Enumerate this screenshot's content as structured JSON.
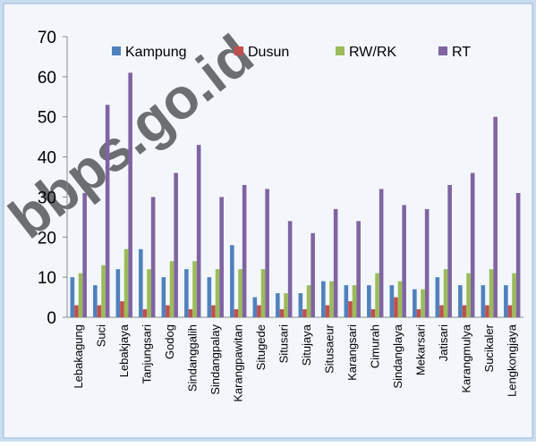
{
  "chart_data": {
    "type": "bar",
    "watermark": "bbps.go.id",
    "categories": [
      "Lebakagung",
      "Suci",
      "Lebakjaya",
      "Tanjungsari",
      "Godog",
      "Sindanggalih",
      "Sindangpalay",
      "Karangpawitan",
      "Situgede",
      "Situsari",
      "Situjaya",
      "Situsaeur",
      "Karangsari",
      "Cimurah",
      "Sindanglaya",
      "Mekarsari",
      "Jatisari",
      "Karangmulya",
      "Sucikaler",
      "Lengkongjaya"
    ],
    "series": [
      {
        "name": "Kampung",
        "color": "#4f81bd",
        "values": [
          10,
          8,
          12,
          17,
          10,
          12,
          10,
          18,
          5,
          6,
          6,
          9,
          8,
          8,
          8,
          7,
          10,
          8,
          8,
          8
        ]
      },
      {
        "name": "Dusun",
        "color": "#c0504d",
        "values": [
          3,
          3,
          4,
          2,
          3,
          2,
          3,
          2,
          3,
          2,
          2,
          3,
          4,
          2,
          5,
          2,
          3,
          3,
          3,
          3
        ]
      },
      {
        "name": "RW/RK",
        "color": "#9bbb59",
        "values": [
          11,
          13,
          17,
          12,
          14,
          14,
          12,
          12,
          12,
          6,
          8,
          9,
          8,
          11,
          9,
          7,
          12,
          11,
          12,
          11
        ]
      },
      {
        "name": "RT",
        "color": "#8064a2",
        "values": [
          31,
          53,
          61,
          30,
          36,
          43,
          30,
          33,
          32,
          24,
          21,
          27,
          24,
          32,
          28,
          27,
          33,
          36,
          50,
          31
        ]
      }
    ],
    "ylim": [
      0,
      70
    ],
    "yticks": [
      0,
      10,
      20,
      30,
      40,
      50,
      60,
      70
    ],
    "grid": false,
    "legend": "top"
  }
}
